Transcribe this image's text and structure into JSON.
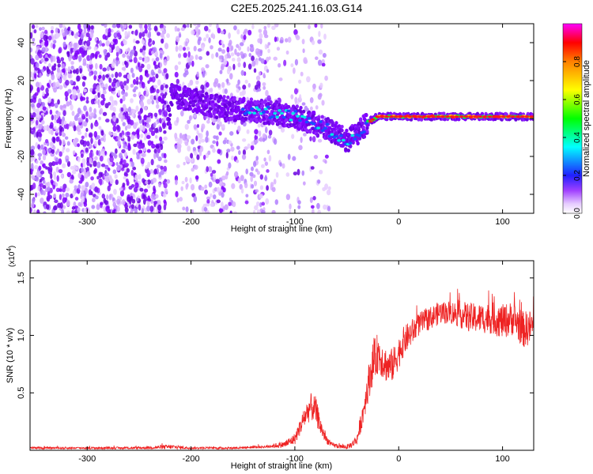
{
  "figure": {
    "title": "C2E5.2025.241.16.03.G14"
  },
  "chart_data": [
    {
      "type": "heatmap",
      "title": "C2E5.2025.241.16.03.G14",
      "xlabel": "Height of straight line (km)",
      "ylabel": "Frequency (Hz)",
      "xlim": [
        -355,
        130
      ],
      "ylim": [
        -50,
        50
      ],
      "xticks": [
        -300,
        -200,
        -100,
        0,
        100
      ],
      "xtick_labels": [
        "-300",
        "-200",
        "-100",
        "0",
        "100"
      ],
      "yticks": [
        -40,
        -20,
        0,
        20,
        40
      ],
      "ytick_labels": [
        "-40",
        "-20",
        "0",
        "20",
        "40"
      ],
      "colorbar": {
        "label": "Normalized spectral amplitude",
        "range": [
          0,
          1
        ],
        "ticks": [
          0.0,
          0.2,
          0.4,
          0.6,
          0.8
        ],
        "tick_labels": [
          "0.0",
          "0.2",
          "0.4",
          "0.6",
          "0.8"
        ],
        "colormap": [
          "#ffffff",
          "#d9b3ff",
          "#8000ff",
          "#0000ff",
          "#00ffff",
          "#00ff00",
          "#ffff00",
          "#ff8000",
          "#ff0000",
          "#ff00ff"
        ]
      },
      "ridge": {
        "x": [
          -220,
          -200,
          -180,
          -160,
          -140,
          -120,
          -100,
          -80,
          -60,
          -50,
          -40,
          -30,
          -20,
          0,
          50,
          100,
          130
        ],
        "freq": [
          12,
          10,
          7,
          5,
          4,
          3,
          1,
          -3,
          -8,
          -12,
          -8,
          -2,
          1,
          1,
          1,
          1,
          1
        ]
      },
      "scatter_regions": [
        {
          "x_from": -355,
          "x_to": -222,
          "density": "high"
        },
        {
          "x_from": -215,
          "x_to": -125,
          "density": "medium"
        },
        {
          "x_from": -125,
          "x_to": -65,
          "density": "low"
        }
      ]
    },
    {
      "type": "line",
      "xlabel": "Height of straight line (km)",
      "ylabel": "SNR (10 * v/v)",
      "scale_label": "(x10",
      "scale_exp": "4",
      "scale_close": ")",
      "xlim": [
        -355,
        130
      ],
      "ylim": [
        0,
        1.65
      ],
      "xticks": [
        -300,
        -200,
        -100,
        0,
        100
      ],
      "xtick_labels": [
        "-300",
        "-200",
        "-100",
        "0",
        "100"
      ],
      "yticks": [
        0.5,
        1.0,
        1.5
      ],
      "ytick_labels": [
        "0.5",
        "1.0",
        "1.5"
      ],
      "series": [
        {
          "name": "SNR",
          "color": "#ee2222",
          "x": [
            -355,
            -300,
            -250,
            -220,
            -200,
            -160,
            -130,
            -110,
            -100,
            -95,
            -90,
            -85,
            -80,
            -75,
            -70,
            -65,
            -60,
            -55,
            -50,
            -45,
            -40,
            -35,
            -30,
            -25,
            -20,
            -15,
            -10,
            -5,
            0,
            5,
            10,
            20,
            30,
            40,
            50,
            60,
            70,
            80,
            90,
            100,
            110,
            120,
            130
          ],
          "values": [
            0.02,
            0.02,
            0.02,
            0.03,
            0.02,
            0.02,
            0.03,
            0.05,
            0.1,
            0.2,
            0.3,
            0.38,
            0.35,
            0.2,
            0.1,
            0.05,
            0.04,
            0.03,
            0.03,
            0.05,
            0.1,
            0.3,
            0.55,
            0.75,
            0.85,
            0.78,
            0.72,
            0.75,
            0.85,
            0.95,
            1.0,
            1.1,
            1.15,
            1.2,
            1.2,
            1.18,
            1.15,
            1.15,
            1.15,
            1.12,
            1.15,
            1.05,
            1.08
          ],
          "noise": [
            0.01,
            0.01,
            0.01,
            0.02,
            0.01,
            0.01,
            0.01,
            0.03,
            0.05,
            0.07,
            0.1,
            0.12,
            0.12,
            0.08,
            0.04,
            0.02,
            0.02,
            0.02,
            0.02,
            0.03,
            0.05,
            0.1,
            0.15,
            0.18,
            0.18,
            0.16,
            0.15,
            0.15,
            0.14,
            0.13,
            0.12,
            0.1,
            0.1,
            0.1,
            0.1,
            0.12,
            0.13,
            0.13,
            0.14,
            0.15,
            0.15,
            0.16,
            0.15
          ]
        }
      ]
    }
  ]
}
